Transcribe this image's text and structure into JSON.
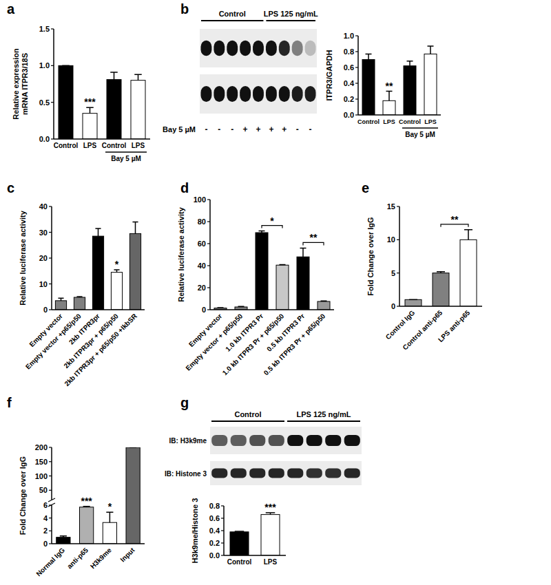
{
  "panel_labels": [
    "a",
    "b",
    "c",
    "d",
    "e",
    "f",
    "g"
  ],
  "blots": [
    {
      "groups": [
        {
          "label": "Control",
          "lanes": 5
        },
        {
          "label": "LPS 125 ng/mL",
          "lanes": 4
        }
      ],
      "row_label": "Bay 5 µM",
      "row_values": [
        "-",
        "-",
        "-",
        "+",
        "+",
        "+",
        "+",
        "-",
        "-"
      ]
    },
    {
      "groups": [
        {
          "label": "Control",
          "lanes": 4
        },
        {
          "label": "LPS 125 ng/mL",
          "lanes": 4
        }
      ],
      "row_labels": [
        "IB: H3k9me",
        "IB: Histone 3"
      ]
    }
  ],
  "chart_data": [
    {
      "type": "bar",
      "ylabel": "Relative expression\nmRNA ITPR3/18S",
      "categories": [
        "Control",
        "LPS",
        "Control",
        "LPS"
      ],
      "values": [
        1.0,
        0.35,
        0.81,
        0.8
      ],
      "errors": [
        0,
        0.08,
        0.1,
        0.08
      ],
      "colors": [
        "#000000",
        "#ffffff",
        "#000000",
        "#ffffff"
      ],
      "ylim": [
        0,
        1.5
      ],
      "yticks": [
        {
          "value": 0,
          "label": "0.0"
        },
        0.5,
        {
          "value": 1,
          "label": "1.0"
        },
        1.5
      ],
      "groups": [
        {
          "label": "Bay 5 µM",
          "from": 2,
          "to": 3
        }
      ],
      "annotations": [
        {
          "text": "***",
          "index": 1
        }
      ]
    },
    {
      "type": "bar",
      "ylabel": "ITPR3/GAPDH",
      "categories": [
        "Control",
        "LPS",
        "Control",
        "LPS"
      ],
      "values": [
        0.7,
        0.18,
        0.62,
        0.77
      ],
      "errors": [
        0.07,
        0.12,
        0.06,
        0.1
      ],
      "colors": [
        "#000000",
        "#ffffff",
        "#000000",
        "#ffffff"
      ],
      "ylim": [
        0,
        1.0
      ],
      "yticks": [
        {
          "value": 0,
          "label": "0.0"
        },
        0.2,
        0.4,
        0.6,
        0.8,
        {
          "value": 1,
          "label": "1.0"
        }
      ],
      "groups": [
        {
          "label": "Bay 5 µM",
          "from": 2,
          "to": 3
        }
      ],
      "annotations": [
        {
          "text": "**",
          "index": 1
        }
      ]
    },
    {
      "type": "bar",
      "ylabel": "Relative luciferase activity",
      "categories": [
        "Empty vector",
        "Empty vector +p65/p50",
        "2kb ITPR3pr",
        "2kb ITPR3pr + p65/p50",
        "2kb ITPR3pr + p65/p50 +IkbSR"
      ],
      "values": [
        3.5,
        4.8,
        28.5,
        14.5,
        29.5
      ],
      "errors": [
        1,
        0.3,
        3,
        1,
        4.5
      ],
      "colors": [
        "#808080",
        "#808080",
        "#000000",
        "#ffffff",
        "#666666"
      ],
      "ylim": [
        0,
        40
      ],
      "yticks": [
        0,
        10,
        20,
        30,
        40
      ],
      "annotations": [
        {
          "text": "*",
          "index": 3
        }
      ]
    },
    {
      "type": "bar",
      "ylabel": "Relative luciferase activity",
      "categories": [
        "Empty vector",
        "Empty vector + p65/p50",
        "1.0 kb ITPR3 Pr",
        "1.0 kb ITPR3 Pr + p65/p50",
        "0.5 kb ITPR3 Pr",
        "0.5 kb ITPR3 Pr + p65/p50"
      ],
      "values": [
        1.5,
        2.5,
        70,
        40.5,
        48,
        7.5
      ],
      "errors": [
        0.3,
        0.5,
        1.5,
        0.5,
        8,
        0.5
      ],
      "colors": [
        "#808080",
        "#808080",
        "#000000",
        "#c8c8c8",
        "#000000",
        "#999999"
      ],
      "ylim": [
        0,
        100
      ],
      "yticks": [
        0,
        20,
        40,
        60,
        80,
        100
      ],
      "annotations": [
        {
          "text": "*",
          "from": 2,
          "to": 3
        },
        {
          "text": "**",
          "from": 4,
          "to": 5
        }
      ]
    },
    {
      "type": "bar",
      "ylabel": "Fold Change over IgG",
      "categories": [
        "Control IgG",
        "Control anti-p65",
        "LPS anti-p65"
      ],
      "values": [
        1.0,
        5.0,
        10.0
      ],
      "errors": [
        0,
        0.2,
        1.5
      ],
      "colors": [
        "#999999",
        "#808080",
        "#ffffff"
      ],
      "ylim": [
        0,
        15
      ],
      "yticks": [
        0,
        5,
        10,
        15
      ],
      "annotations": [
        {
          "text": "**",
          "from": 1,
          "to": 2
        }
      ]
    },
    {
      "type": "bar",
      "ylabel": "Fold Change over IgG",
      "categories": [
        "Normal IgG",
        "anti-p65",
        "H3k9me",
        "Input"
      ],
      "values": [
        1.0,
        5.7,
        3.3,
        200
      ],
      "errors": [
        0.2,
        0.1,
        1.6,
        0
      ],
      "colors": [
        "#000000",
        "#b0b0b0",
        "#ffffff",
        "#666666"
      ],
      "ylim": [
        0,
        200
      ],
      "y_break": [
        6,
        17
      ],
      "yticks": [
        0,
        2,
        4,
        6,
        50,
        100,
        150,
        200
      ],
      "annotations": [
        {
          "text": "***",
          "index": 1
        },
        {
          "text": "*",
          "index": 2
        }
      ]
    },
    {
      "type": "bar",
      "ylabel": "H3k9me/Histone 3",
      "categories": [
        "Control",
        "LPS"
      ],
      "values": [
        0.38,
        0.66
      ],
      "errors": [
        0.01,
        0.03
      ],
      "colors": [
        "#000000",
        "#ffffff"
      ],
      "ylim": [
        0,
        0.8
      ],
      "yticks": [
        {
          "value": 0,
          "label": "0.0"
        },
        0.2,
        0.4,
        0.6,
        0.8
      ],
      "annotations": [
        {
          "text": "***",
          "index": 1
        }
      ]
    }
  ]
}
